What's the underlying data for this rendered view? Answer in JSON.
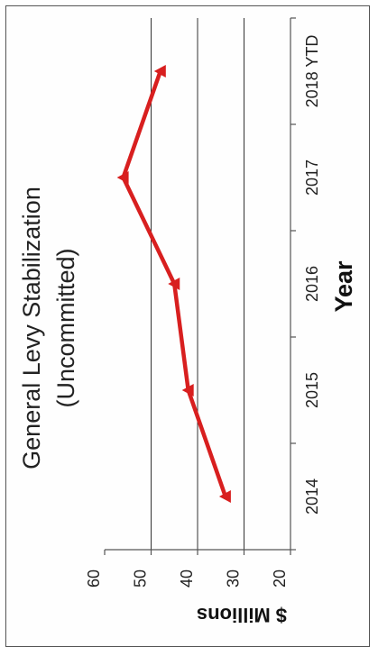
{
  "chart_data": {
    "type": "line",
    "title": "General Levy Stabilization",
    "subtitle": "(Uncommitted)",
    "xlabel": "Year",
    "ylabel": "$ Millions",
    "categories": [
      "2014",
      "2015",
      "2016",
      "2017",
      "2018 YTD"
    ],
    "series": [
      {
        "values": [
          34,
          42,
          45,
          56,
          48
        ]
      }
    ],
    "ylim": [
      20,
      60
    ],
    "yticks": [
      "20",
      "30",
      "40",
      "50",
      "60"
    ],
    "grid": true,
    "orientation": "rotated-90-clockwise",
    "colors": {
      "line": "#d81f1f",
      "grid": "#333333",
      "axis": "#555555",
      "text": "#222222"
    }
  }
}
